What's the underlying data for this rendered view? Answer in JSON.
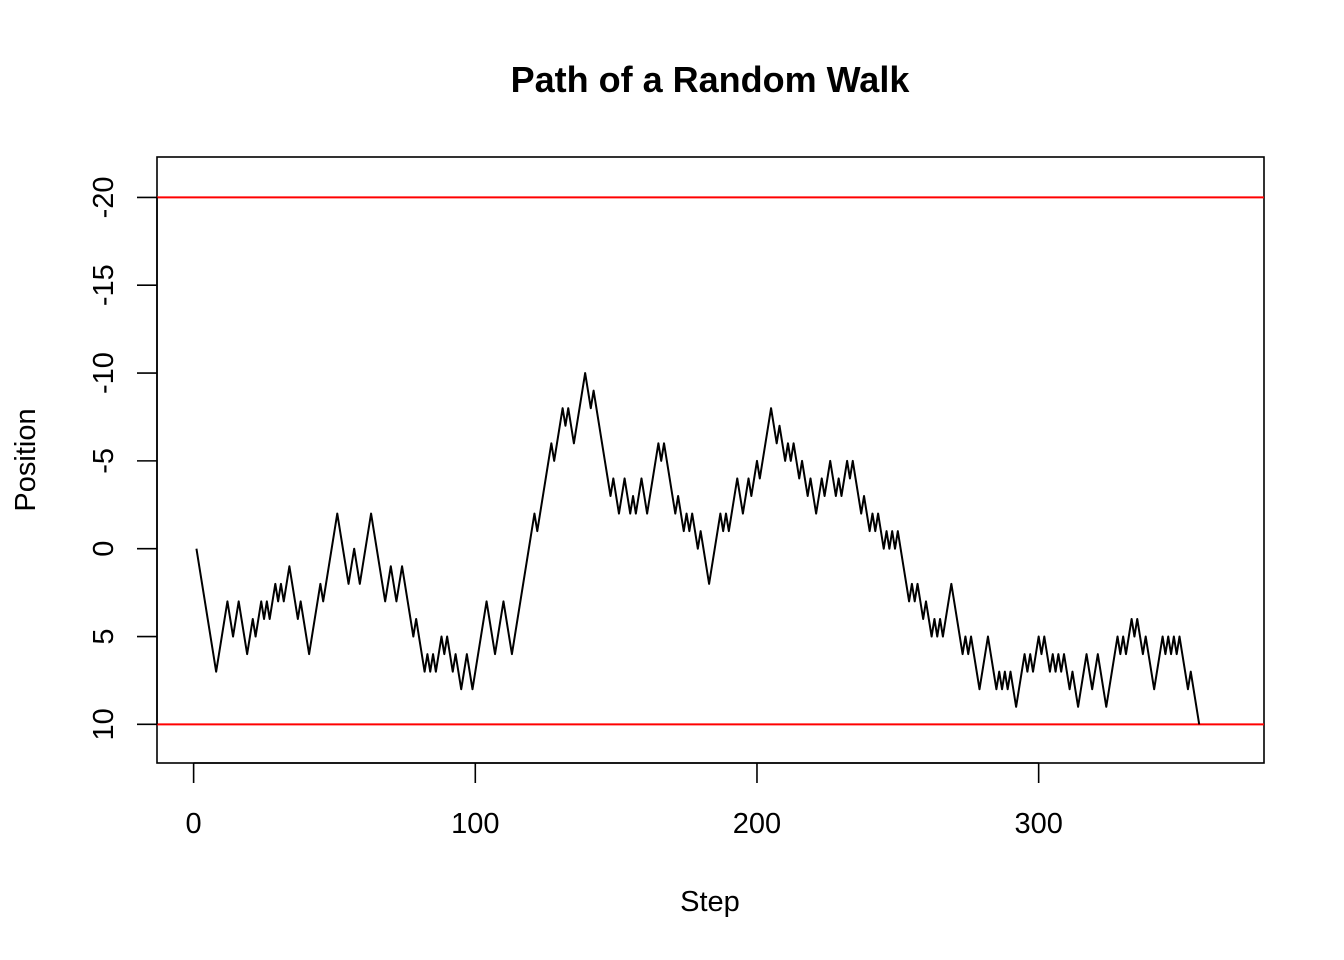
{
  "chart_data": {
    "type": "line",
    "title": "Path of a Random Walk",
    "xlabel": "Step",
    "ylabel": "Position",
    "xlim": [
      -13,
      380
    ],
    "ylim": [
      12.2,
      -22.3
    ],
    "y_axis_reversed": true,
    "x_ticks": [
      0,
      100,
      200,
      300
    ],
    "x_tick_labels": [
      "0",
      "100",
      "200",
      "300"
    ],
    "y_ticks": [
      10,
      5,
      0,
      -5,
      -10,
      -15,
      -20
    ],
    "y_tick_labels": [
      "10",
      "5",
      "0",
      "-5",
      "-10",
      "-15",
      "-20"
    ],
    "grid": false,
    "legend": "none",
    "reference_lines": [
      {
        "axis": "y",
        "value": -20,
        "color": "#ff0000"
      },
      {
        "axis": "y",
        "value": 10,
        "color": "#ff0000"
      }
    ],
    "series": [
      {
        "color": "#000000",
        "x_start": 1,
        "x_step": 1,
        "values": [
          0,
          1,
          2,
          3,
          4,
          5,
          6,
          7,
          6,
          5,
          4,
          3,
          4,
          5,
          4,
          3,
          4,
          5,
          6,
          5,
          4,
          5,
          4,
          3,
          4,
          3,
          4,
          3,
          2,
          3,
          2,
          3,
          2,
          1,
          2,
          3,
          4,
          3,
          4,
          5,
          6,
          5,
          4,
          3,
          2,
          3,
          2,
          1,
          0,
          -1,
          -2,
          -1,
          0,
          1,
          2,
          1,
          0,
          1,
          2,
          1,
          0,
          -1,
          -2,
          -1,
          0,
          1,
          2,
          3,
          2,
          1,
          2,
          3,
          2,
          1,
          2,
          3,
          4,
          5,
          4,
          5,
          6,
          7,
          6,
          7,
          6,
          7,
          6,
          5,
          6,
          5,
          6,
          7,
          6,
          7,
          8,
          7,
          6,
          7,
          8,
          7,
          6,
          5,
          4,
          3,
          4,
          5,
          6,
          5,
          4,
          3,
          4,
          5,
          6,
          5,
          4,
          3,
          2,
          1,
          0,
          -1,
          -2,
          -1,
          -2,
          -3,
          -4,
          -5,
          -6,
          -5,
          -6,
          -7,
          -8,
          -7,
          -8,
          -7,
          -6,
          -7,
          -8,
          -9,
          -10,
          -9,
          -8,
          -9,
          -8,
          -7,
          -6,
          -5,
          -4,
          -3,
          -4,
          -3,
          -2,
          -3,
          -4,
          -3,
          -2,
          -3,
          -2,
          -3,
          -4,
          -3,
          -2,
          -3,
          -4,
          -5,
          -6,
          -5,
          -6,
          -5,
          -4,
          -3,
          -2,
          -3,
          -2,
          -1,
          -2,
          -1,
          -2,
          -1,
          0,
          -1,
          0,
          1,
          2,
          1,
          0,
          -1,
          -2,
          -1,
          -2,
          -1,
          -2,
          -3,
          -4,
          -3,
          -2,
          -3,
          -4,
          -3,
          -4,
          -5,
          -4,
          -5,
          -6,
          -7,
          -8,
          -7,
          -6,
          -7,
          -6,
          -5,
          -6,
          -5,
          -6,
          -5,
          -4,
          -5,
          -4,
          -3,
          -4,
          -3,
          -2,
          -3,
          -4,
          -3,
          -4,
          -5,
          -4,
          -3,
          -4,
          -3,
          -4,
          -5,
          -4,
          -5,
          -4,
          -3,
          -2,
          -3,
          -2,
          -1,
          -2,
          -1,
          -2,
          -1,
          0,
          -1,
          0,
          -1,
          0,
          -1,
          0,
          1,
          2,
          3,
          2,
          3,
          2,
          3,
          4,
          3,
          4,
          5,
          4,
          5,
          4,
          5,
          4,
          3,
          2,
          3,
          4,
          5,
          6,
          5,
          6,
          5,
          6,
          7,
          8,
          7,
          6,
          5,
          6,
          7,
          8,
          7,
          8,
          7,
          8,
          7,
          8,
          9,
          8,
          7,
          6,
          7,
          6,
          7,
          6,
          5,
          6,
          5,
          6,
          7,
          6,
          7,
          6,
          7,
          6,
          7,
          8,
          7,
          8,
          9,
          8,
          7,
          6,
          7,
          8,
          7,
          6,
          7,
          8,
          9,
          8,
          7,
          6,
          5,
          6,
          5,
          6,
          5,
          4,
          5,
          4,
          5,
          6,
          5,
          6,
          7,
          8,
          7,
          6,
          5,
          6,
          5,
          6,
          5,
          6,
          5,
          6,
          7,
          8,
          7,
          8,
          9,
          10
        ]
      }
    ]
  }
}
